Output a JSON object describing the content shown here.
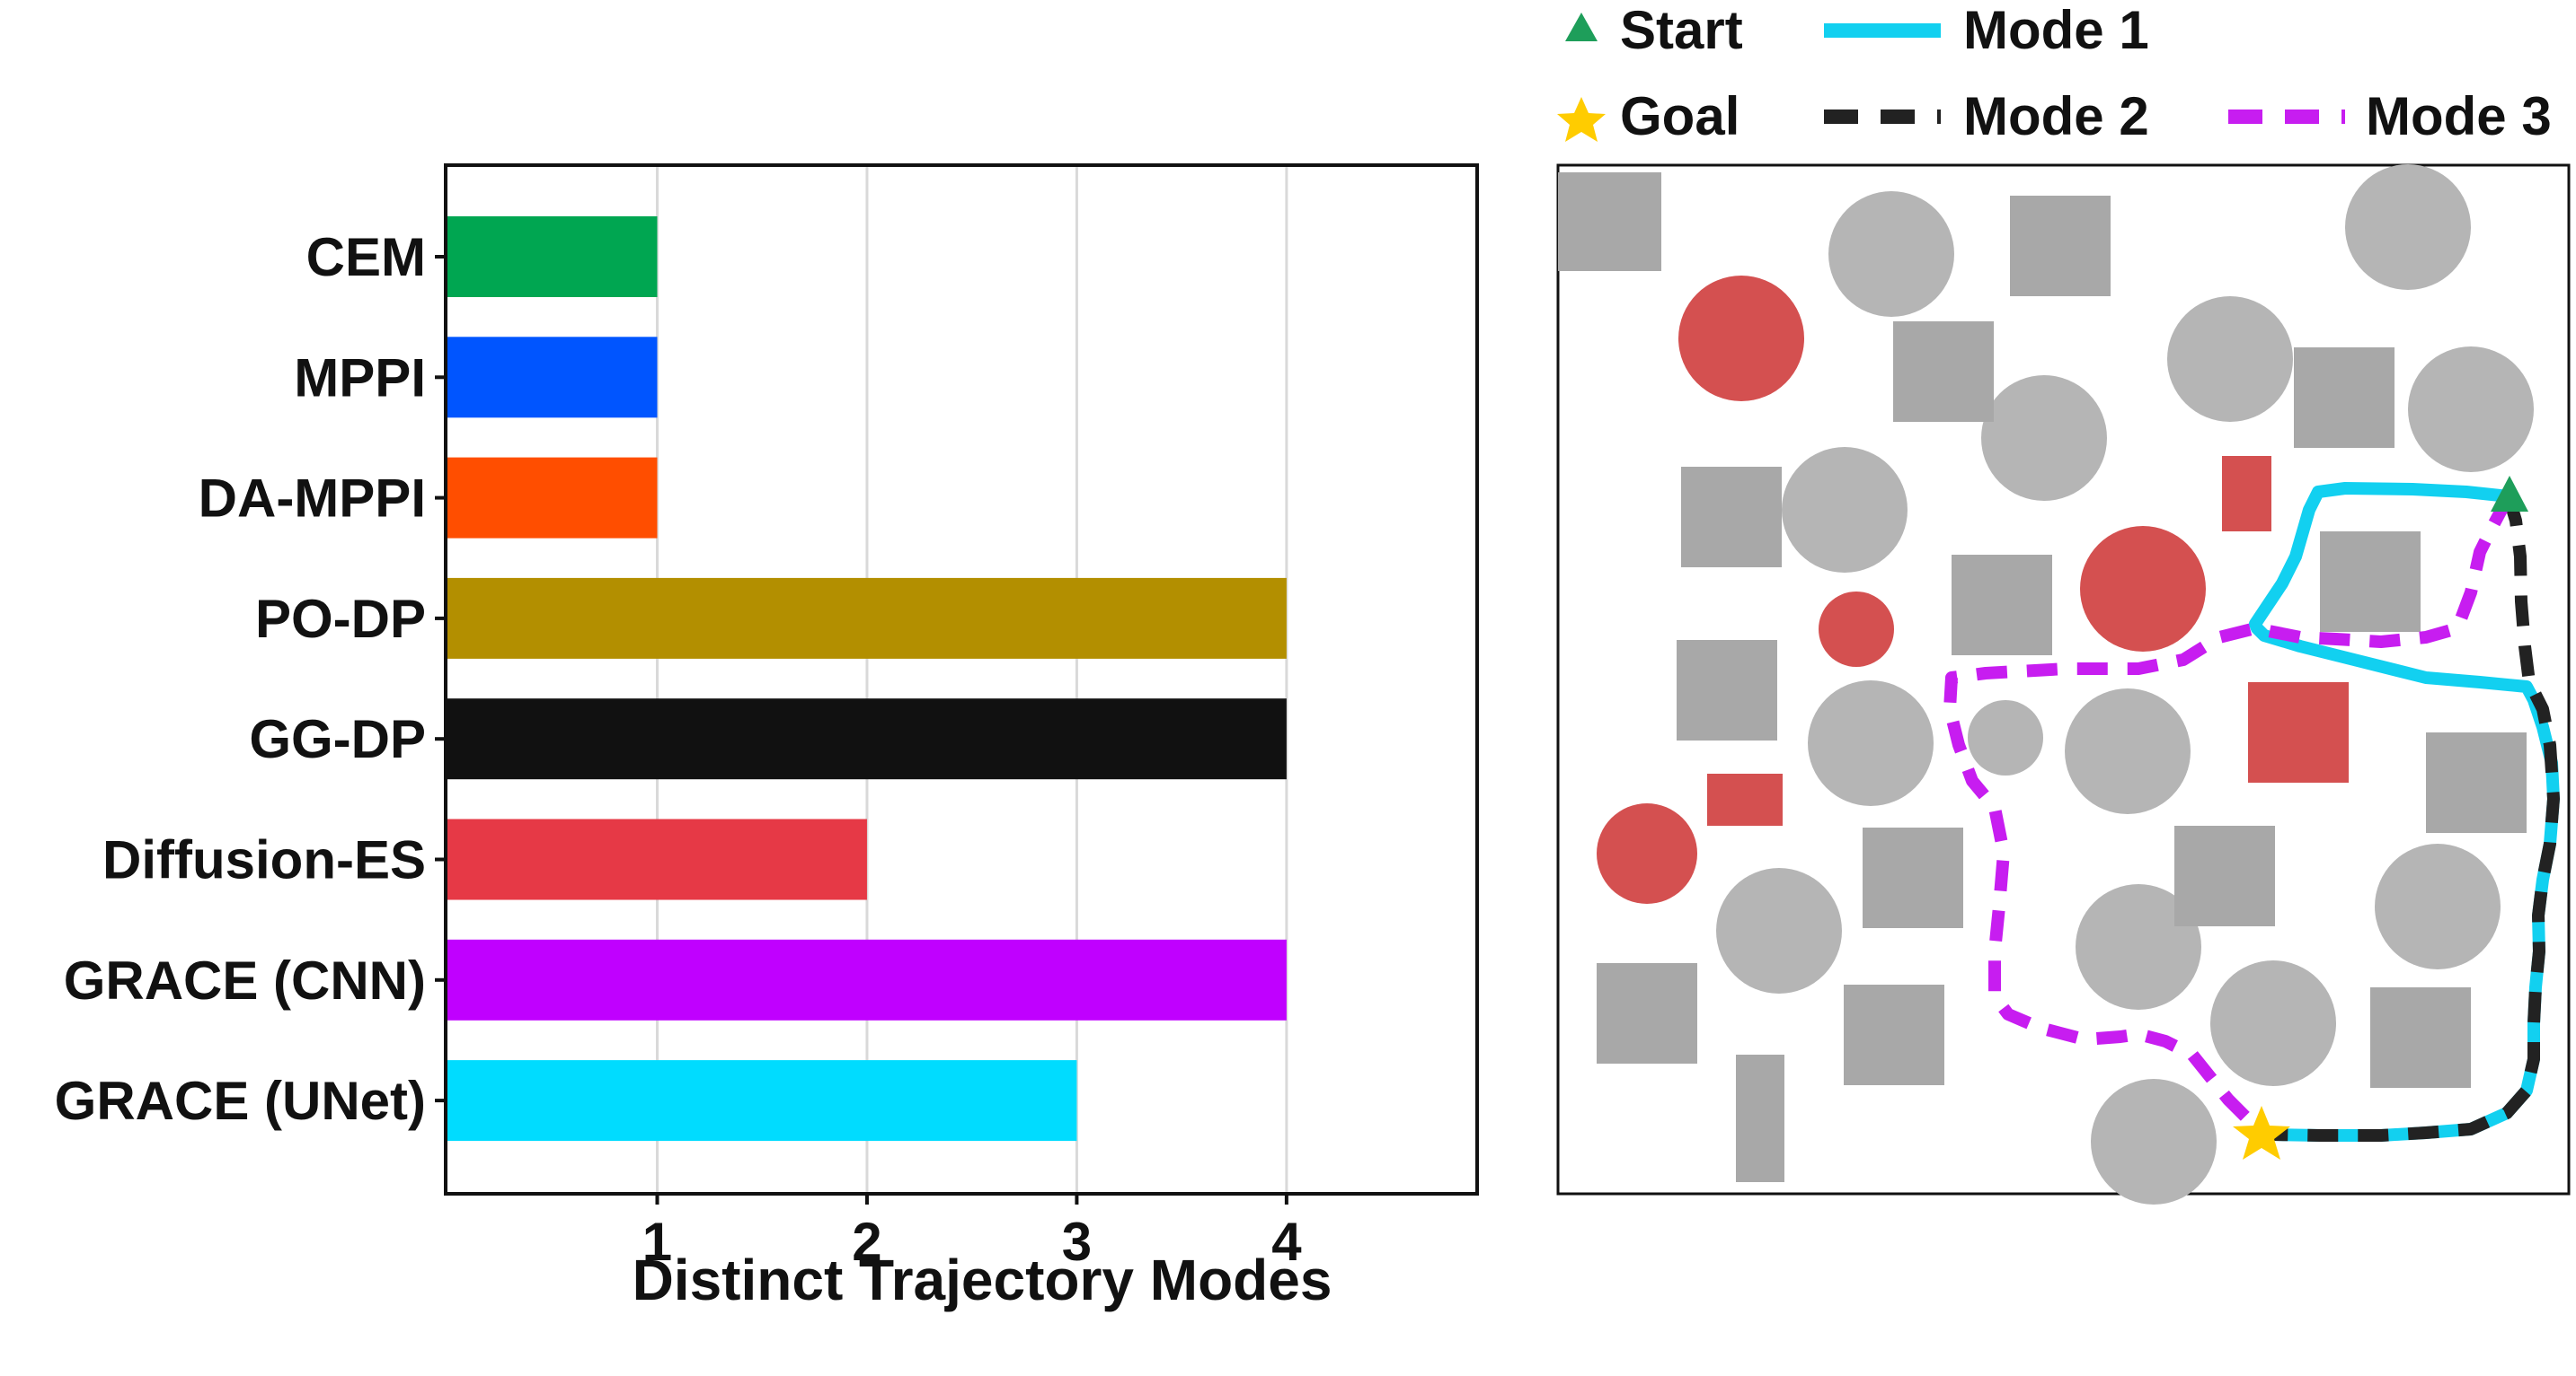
{
  "chart_data": [
    {
      "type": "bar",
      "orientation": "horizontal",
      "categories": [
        "CEM",
        "MPPI",
        "DA-MPPI",
        "PO-DP",
        "GG-DP",
        "Diffusion-ES",
        "GRACE (CNN)",
        "GRACE (UNet)"
      ],
      "values": [
        1,
        1,
        1,
        4,
        4,
        2,
        4,
        3
      ],
      "colors": [
        "#00a651",
        "#0055ff",
        "#ff4e00",
        "#b38f00",
        "#111111",
        "#e63946",
        "#c000ff",
        "#00dcff"
      ],
      "xlabel": "Distinct Trajectory Modes",
      "ylabel": "",
      "title": "",
      "xticks": [
        1,
        2,
        3,
        4
      ],
      "xlim": [
        0,
        4.9
      ],
      "grid": "vertical"
    },
    {
      "type": "trajectory_map",
      "legend": {
        "start": "Start",
        "goal": "Goal",
        "mode1": "Mode 1",
        "mode2": "Mode 2",
        "mode3": "Mode 3"
      },
      "colors": {
        "start": "#1e9e5a",
        "goal": "#ffcc00",
        "mode1": "#12d0f0",
        "mode2": "#222222",
        "mode3": "#c71df0",
        "obstacle_gray": "#b5b5b5",
        "obstacle_dark_gray": "#a8a8a8",
        "obstacle_red": "#d45050"
      }
    }
  ]
}
